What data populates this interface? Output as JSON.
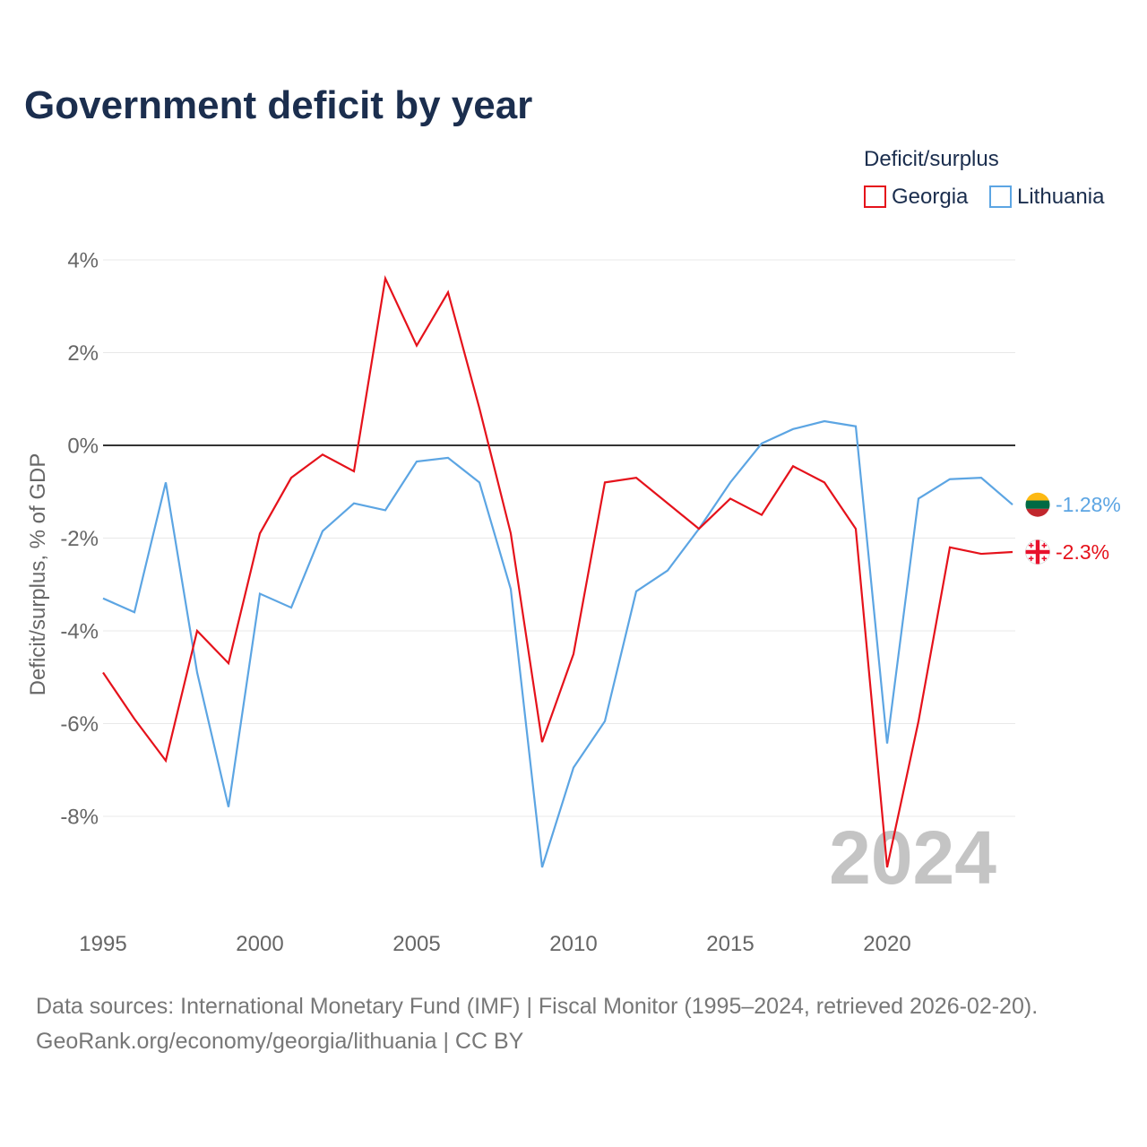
{
  "chart_data": {
    "type": "line",
    "title": "Government deficit by year",
    "xlabel": "",
    "ylabel": "Deficit/surplus, % of GDP",
    "legend_title": "Deficit/surplus",
    "legend_position": "top-right",
    "year_label": "2024",
    "grid": true,
    "x": [
      1995,
      1996,
      1997,
      1998,
      1999,
      2000,
      2001,
      2002,
      2003,
      2004,
      2005,
      2006,
      2007,
      2008,
      2009,
      2010,
      2011,
      2012,
      2013,
      2014,
      2015,
      2016,
      2017,
      2018,
      2019,
      2020,
      2021,
      2022,
      2023,
      2024
    ],
    "xlim": [
      1995,
      2024
    ],
    "ylim": [
      -10,
      4.4
    ],
    "xticks": [
      1995,
      2000,
      2005,
      2010,
      2015,
      2020
    ],
    "xtick_labels": [
      "1995",
      "2000",
      "2005",
      "2010",
      "2015",
      "2020"
    ],
    "yticks": [
      4,
      2,
      0,
      -2,
      -4,
      -6,
      -8
    ],
    "ytick_labels": [
      "4%",
      "2%",
      "0%",
      "-2%",
      "-4%",
      "-6%",
      "-8%"
    ],
    "series": [
      {
        "name": "Georgia",
        "color": "#e5121b",
        "flag_icon": "flag-georgia-icon",
        "end_label": "-2.3%",
        "values": [
          -4.9,
          -5.9,
          -6.8,
          -4.0,
          -4.7,
          -1.9,
          -0.7,
          -0.2,
          -0.56,
          3.6,
          2.15,
          3.3,
          0.8,
          -1.9,
          -6.4,
          -4.5,
          -0.8,
          -0.7,
          -1.25,
          -1.8,
          -1.15,
          -1.5,
          -0.45,
          -0.8,
          -1.8,
          -9.1,
          -5.95,
          -2.2,
          -2.34,
          -2.3
        ]
      },
      {
        "name": "Lithuania",
        "color": "#5ca5e3",
        "flag_icon": "flag-lithuania-icon",
        "end_label": "-1.28%",
        "values": [
          -3.3,
          -3.6,
          -0.8,
          -4.9,
          -7.8,
          -3.2,
          -3.5,
          -1.85,
          -1.25,
          -1.4,
          -0.35,
          -0.27,
          -0.8,
          -3.1,
          -9.1,
          -6.95,
          -5.95,
          -3.15,
          -2.7,
          -1.8,
          -0.8,
          0.04,
          0.35,
          0.52,
          0.41,
          -6.43,
          -1.15,
          -0.73,
          -0.7,
          -1.28
        ]
      }
    ]
  },
  "footer": {
    "source": "Data sources: International Monetary Fund (IMF) | Fiscal Monitor (1995–2024, retrieved 2026-02-20).",
    "credit": "GeoRank.org/economy/georgia/lithuania | CC BY"
  }
}
